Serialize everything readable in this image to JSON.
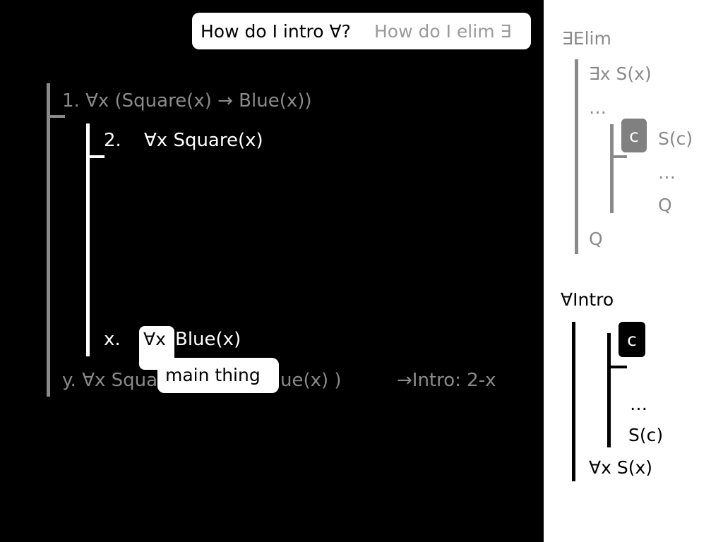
{
  "header": {
    "question_active": "How do I intro ∀?",
    "question_muted": "How do I elim ∃"
  },
  "proof": {
    "line1": "1. ∀x (Square(x) → Blue(x))",
    "line2_num": "2.",
    "line2_formula": "∀x Square(x)",
    "linex_num": "x.",
    "linex_quant": "∀x",
    "linex_formula": "Blue(x)",
    "liney_left": "y. ∀x Squa",
    "liney_right": "ue(x) )",
    "justification": "→Intro: 2-x",
    "tooltip": "main thing"
  },
  "elim_rule": {
    "title": "∃Elim",
    "premise": "∃x S(x)",
    "dots1": "…",
    "const": "c",
    "assume": "S(c)",
    "dots2": "…",
    "inner_q": "Q",
    "conclusion": "Q"
  },
  "intro_rule": {
    "title": "∀Intro",
    "const": "c",
    "dots": "…",
    "sub": "S(c)",
    "conclusion": "∀x S(x)"
  },
  "colors": {
    "background": "#000000",
    "panel": "#ffffff",
    "muted": "#8a8a8a",
    "chip_grey": "#808080"
  }
}
